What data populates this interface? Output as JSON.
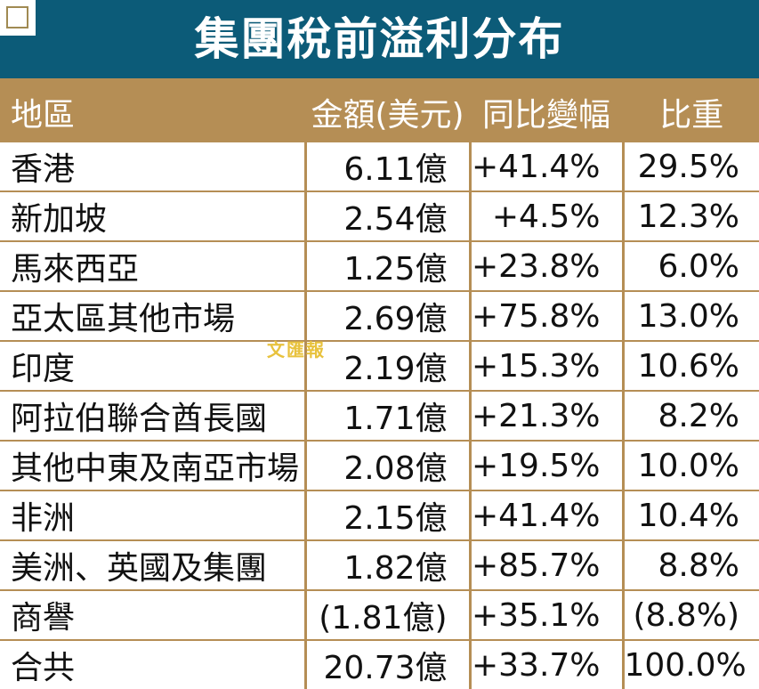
{
  "title": "集團稅前溢利分布",
  "columns": [
    "地區",
    "金額(美元)",
    "同比變幅",
    "比重"
  ],
  "rows": [
    {
      "region": "香港",
      "amount": "6.11億",
      "change": "+41.4%",
      "weight": "29.5%"
    },
    {
      "region": "新加坡",
      "amount": "2.54億",
      "change": "+4.5%",
      "weight": "12.3%"
    },
    {
      "region": "馬來西亞",
      "amount": "1.25億",
      "change": "+23.8%",
      "weight": "6.0%"
    },
    {
      "region": "亞太區其他市場",
      "amount": "2.69億",
      "change": "+75.8%",
      "weight": "13.0%"
    },
    {
      "region": "印度",
      "amount": "2.19億",
      "change": "+15.3%",
      "weight": "10.6%"
    },
    {
      "region": "阿拉伯聯合酋長國",
      "amount": "1.71億",
      "change": "+21.3%",
      "weight": "8.2%"
    },
    {
      "region": "其他中東及南亞市場",
      "amount": "2.08億",
      "change": "+19.5%",
      "weight": "10.0%"
    },
    {
      "region": "非洲",
      "amount": "2.15億",
      "change": "+41.4%",
      "weight": "10.4%"
    },
    {
      "region": "美洲、英國及集團",
      "amount": "1.82億",
      "change": "+85.7%",
      "weight": "8.8%"
    },
    {
      "region": "商譽",
      "amount": "(1.81億)",
      "change": "+35.1%",
      "weight": "(8.8%)"
    },
    {
      "region": "合共",
      "amount": "20.73億",
      "change": "+33.7%",
      "weight": "100.0%"
    }
  ],
  "watermark": "文匯報",
  "colors": {
    "header_bar": "#0c5b78",
    "gold": "#b58e55",
    "watermark": "#e8c23d"
  }
}
